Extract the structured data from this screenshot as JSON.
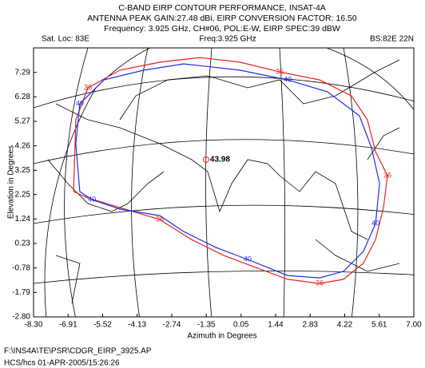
{
  "chart_data": {
    "type": "contour",
    "title": "C-BAND EIRP CONTOUR PERFORMANCE, INSAT-4A",
    "subtitle": "ANTENNA PEAK GAIN:27.48 dBi,  EIRP CONVERSION FACTOR: 16.50",
    "subtitle2": "Frequency: 3.925 GHz, CH#06, POL:E-W, EIRP SPEC:39 dBW",
    "header_left": "Sat. Loc: 83E",
    "header_center": "Freq:3.925 GHz",
    "header_right": "BS:82E 22N",
    "xlabel": "Azimuth in Degrees",
    "ylabel": "Elevation in Degrees",
    "footer": [
      "F:\\INS4A\\TE\\PSR\\CDGR_EIRP_3925.AP",
      "HCS/hcs    01-APR-2005/15:26:26"
    ],
    "xlim": [
      -8.3,
      7.0
    ],
    "ylim": [
      -2.8,
      8.3
    ],
    "xticks": [
      {
        "value": -8.3,
        "label": "-8.30"
      },
      -6.91,
      -5.52,
      -4.13,
      -2.74,
      -1.35,
      0.05,
      1.44,
      2.83,
      4.22,
      5.61,
      {
        "value": 7.0,
        "label": "7.00"
      }
    ],
    "yticks": [
      {
        "value": -2.8,
        "label": "-2.80"
      },
      -1.79,
      -0.78,
      0.23,
      1.24,
      2.25,
      3.25,
      4.26,
      5.27,
      6.28,
      7.29
    ],
    "series": [
      {
        "level": 36,
        "color": "#e8201c",
        "x": [
          -6.69,
          -6.6,
          -6.11,
          -4.83,
          -3.22,
          -1.61,
          0.0,
          1.6,
          3.21,
          4.49,
          5.13,
          5.46,
          5.94,
          5.78,
          5.46,
          4.97,
          4.17,
          3.21,
          1.92,
          0.64,
          -0.65,
          -1.94,
          -3.22,
          -4.83,
          -6.11
        ],
        "y": [
          2.37,
          5.34,
          6.65,
          7.38,
          7.71,
          7.9,
          7.71,
          7.31,
          6.98,
          6.32,
          5.34,
          4.02,
          3.03,
          1.71,
          0.39,
          -0.59,
          -1.25,
          -1.42,
          -1.25,
          -0.76,
          -0.26,
          0.39,
          1.22,
          1.71,
          2.11
        ]
      },
      {
        "level": 40,
        "color": "#1c2ee8",
        "x": [
          -6.44,
          -6.6,
          -6.44,
          -5.47,
          -3.86,
          -2.26,
          0.0,
          1.92,
          3.53,
          4.81,
          5.3,
          5.62,
          5.46,
          4.97,
          4.17,
          3.21,
          1.92,
          0.31,
          -0.97,
          -2.26,
          -3.22,
          -4.83,
          -5.95
        ],
        "y": [
          2.37,
          4.35,
          5.99,
          6.98,
          7.38,
          7.64,
          7.38,
          6.98,
          6.49,
          5.5,
          4.18,
          2.7,
          1.05,
          -0.1,
          -0.92,
          -1.19,
          -1.09,
          -0.43,
          0.07,
          0.72,
          1.38,
          1.65,
          2.04
        ]
      }
    ],
    "peak": {
      "x": -1.36,
      "y": 3.69,
      "value": 43.98,
      "color": "#e8201c"
    }
  }
}
